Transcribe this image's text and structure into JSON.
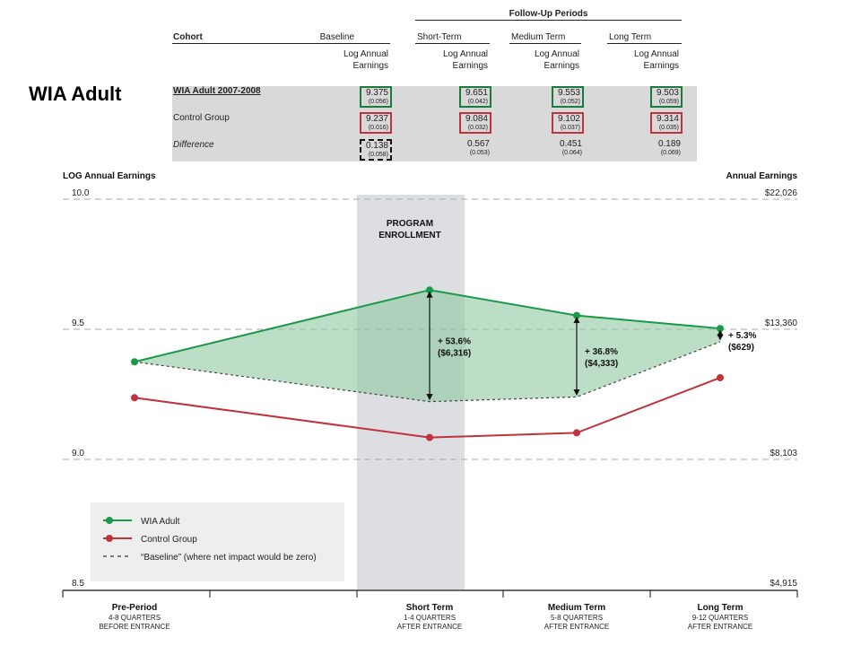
{
  "page_title": "WIA Adult",
  "table": {
    "followup_header": "Follow-Up Periods",
    "cohort_header": "Cohort",
    "period_headers": [
      "Baseline",
      "Short-Term",
      "Medium Term",
      "Long Term"
    ],
    "measure_label": "Log Annual Earnings",
    "rows": [
      {
        "label": "WIA Adult 2007-2008",
        "values": [
          "9.375",
          "9.651",
          "9.553",
          "9.503"
        ],
        "se": [
          "(0.056)",
          "(0.042)",
          "(0.052)",
          "(0.059)"
        ]
      },
      {
        "label": "Control Group",
        "values": [
          "9.237",
          "9.084",
          "9.102",
          "9.314"
        ],
        "se": [
          "(0.016)",
          "(0.032)",
          "(0.037)",
          "(0.035)"
        ]
      },
      {
        "label": "Difference",
        "values": [
          "0.138",
          "0.567",
          "0.451",
          "0.189"
        ],
        "se": [
          "(0.058)",
          "(0.053)",
          "(0.064)",
          "(0.069)"
        ]
      }
    ]
  },
  "colors": {
    "wia": "#1a9a48",
    "control": "#c0323c",
    "area": "#8fc8a2",
    "shade": "#dcdee2",
    "legend_bg": "#eeeeee"
  },
  "chart_data": {
    "type": "line",
    "ylabel": "LOG Annual Earnings",
    "y2label": "Annual Earnings",
    "ylim": [
      8.5,
      10.0
    ],
    "y_ticks": [
      {
        "value": 10.0,
        "label": "10.0",
        "right_label": "$22,026"
      },
      {
        "value": 9.5,
        "label": "9.5",
        "right_label": "$13,360"
      },
      {
        "value": 9.0,
        "label": "9.0",
        "right_label": "$8,103"
      },
      {
        "value": 8.5,
        "label": "8.5",
        "right_label": "$4,915"
      }
    ],
    "categories": [
      {
        "name": "Pre-Period",
        "sub1": "4-8 QUARTERS",
        "sub2": "BEFORE ENTRANCE"
      },
      {
        "name": "Short Term",
        "sub1": "1-4 QUARTERS",
        "sub2": "AFTER ENTRANCE"
      },
      {
        "name": "Medium Term",
        "sub1": "5-8 QUARTERS",
        "sub2": "AFTER ENTRANCE"
      },
      {
        "name": "Long Term",
        "sub1": "9-12 QUARTERS",
        "sub2": "AFTER ENTRANCE"
      }
    ],
    "series": [
      {
        "name": "WIA Adult",
        "values": [
          9.375,
          9.651,
          9.553,
          9.503
        ]
      },
      {
        "name": "Control Group",
        "values": [
          9.237,
          9.084,
          9.102,
          9.314
        ]
      }
    ],
    "baseline": {
      "name": "“Baseline” (where net impact would be zero)",
      "values": [
        9.375,
        9.222,
        9.24,
        9.452
      ]
    },
    "shaded_region_label": [
      "PROGRAM",
      "ENROLLMENT"
    ],
    "annotations": [
      {
        "category": 1,
        "line1": "+ 53.6%",
        "line2": "($6,316)"
      },
      {
        "category": 2,
        "line1": "+ 36.8%",
        "line2": "($4,333)"
      },
      {
        "category": 3,
        "line1": "+ 5.3%",
        "line2": "($629)"
      }
    ],
    "grid": true,
    "legend_position": "bottom-left"
  }
}
